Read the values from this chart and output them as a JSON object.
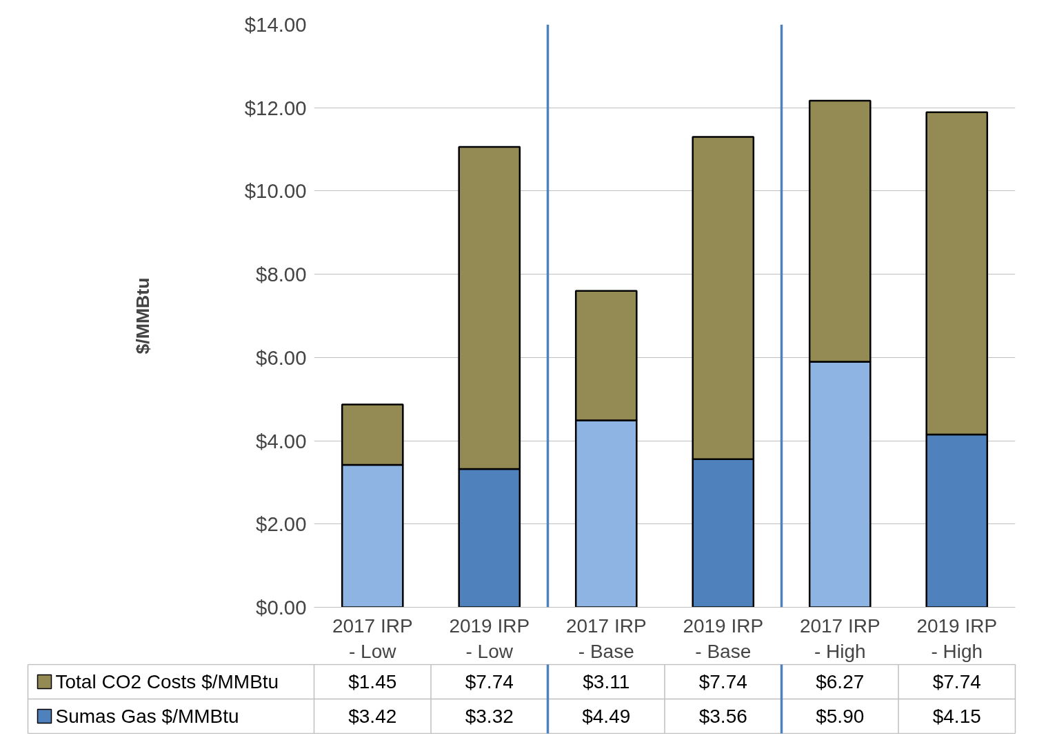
{
  "chart_data": {
    "type": "bar",
    "stacked": true,
    "ylabel": "$/MMBtu",
    "categories": [
      "2017 IRP - Low",
      "2019 IRP - Low",
      "2017 IRP - Base",
      "2019 IRP - Base",
      "2017 IRP - High",
      "2019 IRP - High"
    ],
    "series": [
      {
        "name": "Sumas Gas $/MMBtu",
        "color": "#4f81bd",
        "colors": [
          "#8eb4e3",
          "#4f81bd",
          "#8eb4e3",
          "#4f81bd",
          "#8eb4e3",
          "#4f81bd"
        ],
        "values": [
          3.42,
          3.32,
          4.49,
          3.56,
          5.9,
          4.15
        ],
        "value_labels": [
          "$3.42",
          "$3.32",
          "$4.49",
          "$3.56",
          "$5.90",
          "$4.15"
        ]
      },
      {
        "name": "Total CO2 Costs $/MMBtu",
        "color": "#948a54",
        "values": [
          1.45,
          7.74,
          3.11,
          7.74,
          6.27,
          7.74
        ],
        "value_labels": [
          "$1.45",
          "$7.74",
          "$3.11",
          "$7.74",
          "$6.27",
          "$7.74"
        ]
      }
    ],
    "ylim": [
      0,
      14
    ],
    "yticks": [
      {
        "value": 0,
        "label": "$0.00"
      },
      {
        "value": 2,
        "label": "$2.00"
      },
      {
        "value": 4,
        "label": "$4.00"
      },
      {
        "value": 6,
        "label": "$6.00"
      },
      {
        "value": 8,
        "label": "$8.00"
      },
      {
        "value": 10,
        "label": "$10.00"
      },
      {
        "value": 12,
        "label": "$12.00"
      },
      {
        "value": 14,
        "label": "$14.00"
      }
    ],
    "grid": "y",
    "legend": "bottom left"
  }
}
